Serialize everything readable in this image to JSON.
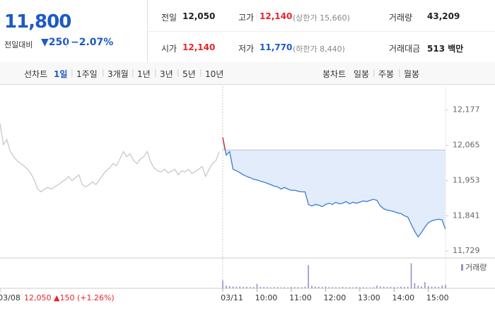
{
  "quote": {
    "price": "11,800",
    "change_label": "전일대비",
    "change": "▼250",
    "change_rate": "−2.07%"
  },
  "stats": [
    {
      "label": "전일",
      "value": "12,050"
    },
    {
      "label": "고가",
      "value": "12,140",
      "note": "(상한가 15,660)"
    },
    {
      "label": "거래량",
      "value": "43,209"
    },
    {
      "label": "시가",
      "value": "12,140"
    },
    {
      "label": "저가",
      "value": "11,770",
      "note": "(하한가 8,440)"
    },
    {
      "label": "거래대금",
      "value": "513 백만"
    }
  ],
  "tabs": {
    "line": {
      "label": "선차트",
      "items": [
        "1일",
        "1주일",
        "3개월",
        "1년",
        "3년",
        "5년",
        "10년"
      ],
      "selected": 0
    },
    "candle": {
      "label": "봉차트",
      "items": [
        "일봉",
        "주봉",
        "월봉"
      ]
    }
  },
  "chart_data": {
    "type": "line",
    "xlim": [
      -6.5,
      6.5
    ],
    "xticks": [
      {
        "value": -6.5,
        "label": "03/08"
      },
      {
        "value": 0,
        "label": "03/11"
      },
      {
        "value": 1,
        "label": "10:00"
      },
      {
        "value": 2,
        "label": "11:00"
      },
      {
        "value": 3,
        "label": "12:00"
      },
      {
        "value": 4,
        "label": "13:00"
      },
      {
        "value": 5,
        "label": "14:00"
      },
      {
        "value": 6,
        "label": "15:00"
      }
    ],
    "ylim": [
      11707,
      12246
    ],
    "yticks": [
      {
        "value": 12177,
        "label": "12,177"
      },
      {
        "value": 12065,
        "label": "12,065"
      },
      {
        "value": 11953,
        "label": "11,953"
      },
      {
        "value": 11841,
        "label": "11,841"
      },
      {
        "value": 11729,
        "label": "11,729"
      }
    ],
    "reference": 12050,
    "up_color": "#e8242a",
    "fill_color": "#e3ecfa",
    "annotation": "12,050 ▲150 (+1.26%)",
    "series": [
      {
        "color": "#c8c8c8",
        "x": [
          -6.5,
          -6.4,
          -6.3,
          -6.2,
          -6.1,
          -6,
          -5.9,
          -5.8,
          -5.7,
          -5.6,
          -5.5,
          -5.4,
          -5.3,
          -5.2,
          -5.1,
          -5,
          -4.9,
          -4.8,
          -4.7,
          -4.6,
          -4.5,
          -4.4,
          -4.3,
          -4.2,
          -4.1,
          -4,
          -3.9,
          -3.8,
          -3.7,
          -3.6,
          -3.5,
          -3.4,
          -3.3,
          -3.2,
          -3.1,
          -3,
          -2.9,
          -2.8,
          -2.7,
          -2.6,
          -2.5,
          -2.4,
          -2.3,
          -2.2,
          -2.1,
          -2,
          -1.9,
          -1.8,
          -1.7,
          -1.6,
          -1.5,
          -1.4,
          -1.3,
          -1.2,
          -1.1,
          -1,
          -0.9,
          -0.8,
          -0.7,
          -0.6,
          -0.5,
          -0.4,
          -0.3,
          -0.2,
          -0.1
        ],
        "values": [
          12134,
          12067,
          12083,
          12045,
          12029,
          12016,
          12007,
          12000,
          11989,
          11975,
          11955,
          11926,
          11917,
          11926,
          11931,
          11926,
          11933,
          11940,
          11948,
          11955,
          11966,
          11953,
          11962,
          11971,
          11940,
          11933,
          11940,
          11948,
          11940,
          11955,
          11971,
          11984,
          11993,
          12007,
          12000,
          12022,
          12045,
          12029,
          12038,
          12016,
          12007,
          12022,
          12029,
          12045,
          12011,
          11993,
          11984,
          11980,
          11989,
          11978,
          11982,
          11989,
          11971,
          11984,
          11980,
          11989,
          11975,
          11982,
          11989,
          11998,
          11966,
          11989,
          12007,
          12016,
          12045
        ]
      },
      {
        "color": "#3a7bd5",
        "x": [
          0,
          0.1,
          0.2,
          0.3,
          0.4,
          0.5,
          0.6,
          0.7,
          0.8,
          0.9,
          1,
          1.1,
          1.2,
          1.3,
          1.4,
          1.5,
          1.6,
          1.7,
          1.8,
          1.9,
          2,
          2.1,
          2.2,
          2.3,
          2.4,
          2.5,
          2.6,
          2.7,
          2.8,
          2.9,
          3,
          3.1,
          3.2,
          3.3,
          3.4,
          3.5,
          3.6,
          3.7,
          3.8,
          3.9,
          4,
          4.1,
          4.2,
          4.3,
          4.4,
          4.5,
          4.6,
          4.7,
          4.8,
          4.9,
          5,
          5.1,
          5.2,
          5.3,
          5.4,
          5.5,
          5.6,
          5.7,
          5.8,
          5.9,
          6,
          6.1,
          6.2,
          6.3,
          6.4,
          6.5
        ],
        "values": [
          12090,
          12034,
          12045,
          11989,
          11984,
          11978,
          11971,
          11966,
          11962,
          11957,
          11955,
          11951,
          11948,
          11944,
          11940,
          11935,
          11933,
          11926,
          11931,
          11926,
          11922,
          11922,
          11919,
          11917,
          11917,
          11877,
          11872,
          11877,
          11875,
          11870,
          11877,
          11881,
          11877,
          11884,
          11879,
          11881,
          11886,
          11879,
          11884,
          11881,
          11884,
          11888,
          11886,
          11890,
          11893,
          11890,
          11872,
          11863,
          11859,
          11857,
          11854,
          11850,
          11848,
          11841,
          11837,
          11814,
          11792,
          11774,
          11788,
          11805,
          11819,
          11825,
          11828,
          11830,
          11828,
          11798
        ],
        "volume": [
          900,
          300,
          250,
          200,
          180,
          200,
          150,
          160,
          150,
          140,
          500,
          150,
          140,
          130,
          120,
          140,
          130,
          110,
          120,
          100,
          150,
          130,
          140,
          120,
          160,
          2600,
          300,
          200,
          180,
          150,
          200,
          140,
          130,
          120,
          110,
          150,
          120,
          130,
          110,
          140,
          120,
          130,
          110,
          100,
          120,
          300,
          200,
          180,
          150,
          160,
          140,
          130,
          200,
          150,
          170,
          2800,
          600,
          300,
          200,
          700,
          250,
          200,
          180,
          160,
          300,
          400
        ]
      }
    ],
    "volume_name": "거래량",
    "volume_color": "#9c8fc4",
    "volume_ylim": [
      0,
      3000
    ]
  }
}
